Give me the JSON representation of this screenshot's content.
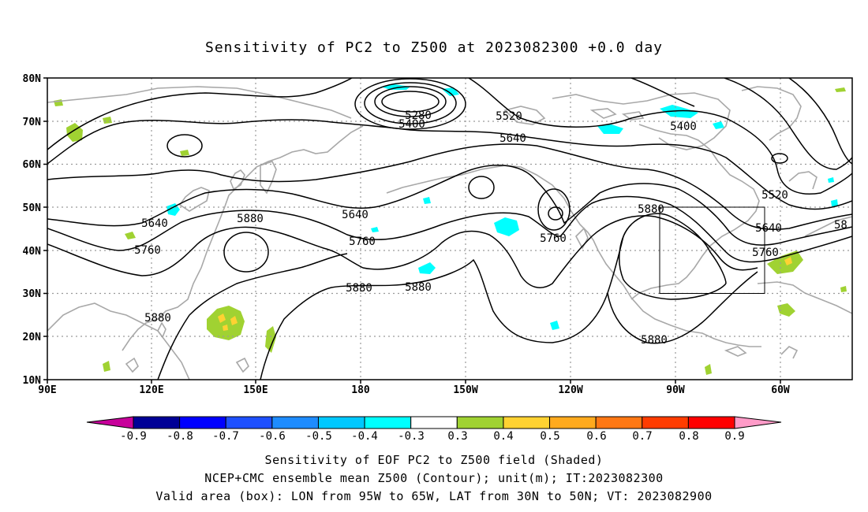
{
  "title": "Sensitivity of PC2 to Z500 at 2023082300 +0.0 day",
  "lat_labels": [
    "80N",
    "70N",
    "60N",
    "50N",
    "40N",
    "30N",
    "20N",
    "10N"
  ],
  "lon_labels": [
    "90E",
    "120E",
    "150E",
    "180",
    "150W",
    "120W",
    "90W",
    "60W"
  ],
  "contour_labels": [
    "5280",
    "5400",
    "5520",
    "5640",
    "5400",
    "5520",
    "5640",
    "5880",
    "5760",
    "5640",
    "5760",
    "5880",
    "5760",
    "5880",
    "5880",
    "5880",
    "5880",
    "5640",
    "5760",
    "58"
  ],
  "colorbar": {
    "ticks": [
      "-0.9",
      "-0.8",
      "-0.7",
      "-0.6",
      "-0.5",
      "-0.4",
      "-0.3",
      "0.3",
      "0.4",
      "0.5",
      "0.6",
      "0.7",
      "0.8",
      "0.9"
    ],
    "colors": [
      "#000096",
      "#0000ff",
      "#1e50ff",
      "#1e8cff",
      "#00c8ff",
      "#00ffff",
      "#ffffff",
      "#a0d232",
      "#ffd232",
      "#ffaa1e",
      "#ff7814",
      "#ff3c00",
      "#ff0000"
    ],
    "low_end_color": "#c8009b",
    "high_end_color": "#ff9bc8"
  },
  "valid_box": {
    "lon_from": "95W",
    "lon_to": "65W",
    "lat_from": "30N",
    "lat_to": "50N"
  },
  "footer": {
    "line1": "Sensitivity of EOF PC2 to Z500 field (Shaded)",
    "line2": "NCEP+CMC ensemble mean Z500 (Contour); unit(m); IT:2023082300",
    "line3": "Valid area (box): LON from 95W to 65W, LAT from 30N to 50N; VT: 2023082900"
  }
}
